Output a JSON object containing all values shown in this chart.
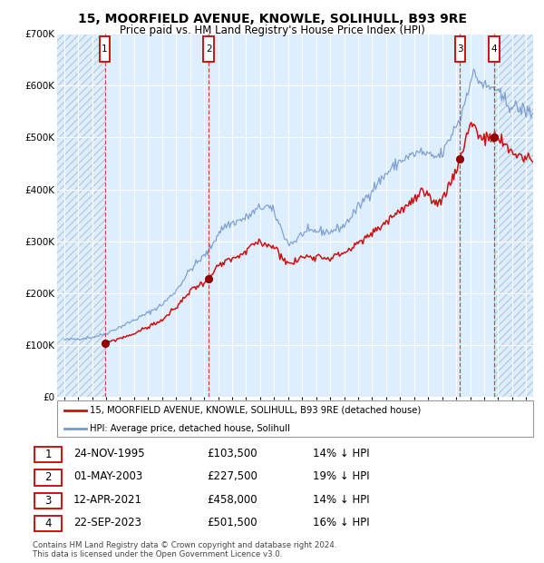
{
  "title": "15, MOORFIELD AVENUE, KNOWLE, SOLIHULL, B93 9RE",
  "subtitle": "Price paid vs. HM Land Registry's House Price Index (HPI)",
  "background_color": "#ffffff",
  "plot_bg_color": "#ddeeff",
  "sale_line_color": "#cc1111",
  "hpi_line_color": "#7799cc",
  "hatch_color": "#bbccdd",
  "transactions": [
    {
      "num": 1,
      "date_f": 1995.9,
      "price": 103500
    },
    {
      "num": 2,
      "date_f": 2003.33,
      "price": 227500
    },
    {
      "num": 3,
      "date_f": 2021.28,
      "price": 458000
    },
    {
      "num": 4,
      "date_f": 2023.73,
      "price": 501500
    }
  ],
  "ylim": [
    0,
    700000
  ],
  "yticks": [
    0,
    100000,
    200000,
    300000,
    400000,
    500000,
    600000,
    700000
  ],
  "ytick_labels": [
    "£0",
    "£100K",
    "£200K",
    "£300K",
    "£400K",
    "£500K",
    "£600K",
    "£700K"
  ],
  "xlim_start": 1992.5,
  "xlim_end": 2026.5,
  "footer": "Contains HM Land Registry data © Crown copyright and database right 2024.\nThis data is licensed under the Open Government Licence v3.0.",
  "legend_label_sale": "15, MOORFIELD AVENUE, KNOWLE, SOLIHULL, B93 9RE (detached house)",
  "legend_label_hpi": "HPI: Average price, detached house, Solihull",
  "table_rows": [
    [
      "1",
      "24-NOV-1995",
      "£103,500",
      "14% ↓ HPI"
    ],
    [
      "2",
      "01-MAY-2003",
      "£227,500",
      "19% ↓ HPI"
    ],
    [
      "3",
      "12-APR-2021",
      "£458,000",
      "14% ↓ HPI"
    ],
    [
      "4",
      "22-SEP-2023",
      "£501,500",
      "16% ↓ HPI"
    ]
  ],
  "hpi_anchors": [
    [
      1992.5,
      108000
    ],
    [
      1993.0,
      110000
    ],
    [
      1994.0,
      112000
    ],
    [
      1995.0,
      115000
    ],
    [
      1995.9,
      121000
    ],
    [
      1997.0,
      135000
    ],
    [
      1998.0,
      148000
    ],
    [
      1999.0,
      162000
    ],
    [
      2000.0,
      178000
    ],
    [
      2001.0,
      205000
    ],
    [
      2002.0,
      245000
    ],
    [
      2003.33,
      281000
    ],
    [
      2004.0,
      315000
    ],
    [
      2004.5,
      330000
    ],
    [
      2005.0,
      335000
    ],
    [
      2006.0,
      345000
    ],
    [
      2007.0,
      365000
    ],
    [
      2007.5,
      368000
    ],
    [
      2008.0,
      355000
    ],
    [
      2009.0,
      295000
    ],
    [
      2009.5,
      300000
    ],
    [
      2010.0,
      315000
    ],
    [
      2011.0,
      320000
    ],
    [
      2012.0,
      318000
    ],
    [
      2013.0,
      330000
    ],
    [
      2014.0,
      365000
    ],
    [
      2015.0,
      400000
    ],
    [
      2016.0,
      430000
    ],
    [
      2017.0,
      455000
    ],
    [
      2018.0,
      468000
    ],
    [
      2018.5,
      472000
    ],
    [
      2019.0,
      465000
    ],
    [
      2019.5,
      462000
    ],
    [
      2020.0,
      468000
    ],
    [
      2020.5,
      495000
    ],
    [
      2021.0,
      525000
    ],
    [
      2021.28,
      533000
    ],
    [
      2021.5,
      558000
    ],
    [
      2022.0,
      610000
    ],
    [
      2022.3,
      622000
    ],
    [
      2022.5,
      615000
    ],
    [
      2022.8,
      605000
    ],
    [
      2023.0,
      600000
    ],
    [
      2023.3,
      595000
    ],
    [
      2023.73,
      597000
    ],
    [
      2024.0,
      583000
    ],
    [
      2024.5,
      570000
    ],
    [
      2025.0,
      560000
    ],
    [
      2025.5,
      555000
    ],
    [
      2026.5,
      548000
    ]
  ],
  "sale_anchors": [
    [
      1995.9,
      103500
    ],
    [
      1997.0,
      113000
    ],
    [
      1998.0,
      122000
    ],
    [
      1999.0,
      135000
    ],
    [
      2000.0,
      148000
    ],
    [
      2001.0,
      172000
    ],
    [
      2002.0,
      205000
    ],
    [
      2003.33,
      227500
    ],
    [
      2004.0,
      252000
    ],
    [
      2005.0,
      265000
    ],
    [
      2006.0,
      278000
    ],
    [
      2006.5,
      295000
    ],
    [
      2007.0,
      298000
    ],
    [
      2008.0,
      290000
    ],
    [
      2009.0,
      256000
    ],
    [
      2009.5,
      260000
    ],
    [
      2010.0,
      270000
    ],
    [
      2011.0,
      272000
    ],
    [
      2012.0,
      268000
    ],
    [
      2013.0,
      278000
    ],
    [
      2014.0,
      295000
    ],
    [
      2015.0,
      315000
    ],
    [
      2016.0,
      338000
    ],
    [
      2017.0,
      360000
    ],
    [
      2018.0,
      378000
    ],
    [
      2018.5,
      395000
    ],
    [
      2019.0,
      382000
    ],
    [
      2019.5,
      375000
    ],
    [
      2020.0,
      380000
    ],
    [
      2020.5,
      408000
    ],
    [
      2021.0,
      440000
    ],
    [
      2021.28,
      458000
    ],
    [
      2021.5,
      478000
    ],
    [
      2022.0,
      530000
    ],
    [
      2022.3,
      525000
    ],
    [
      2022.5,
      508000
    ],
    [
      2022.8,
      500000
    ],
    [
      2023.0,
      498000
    ],
    [
      2023.3,
      495000
    ],
    [
      2023.73,
      501500
    ],
    [
      2024.0,
      498000
    ],
    [
      2024.5,
      482000
    ],
    [
      2025.0,
      472000
    ],
    [
      2025.5,
      465000
    ],
    [
      2026.5,
      458000
    ]
  ]
}
